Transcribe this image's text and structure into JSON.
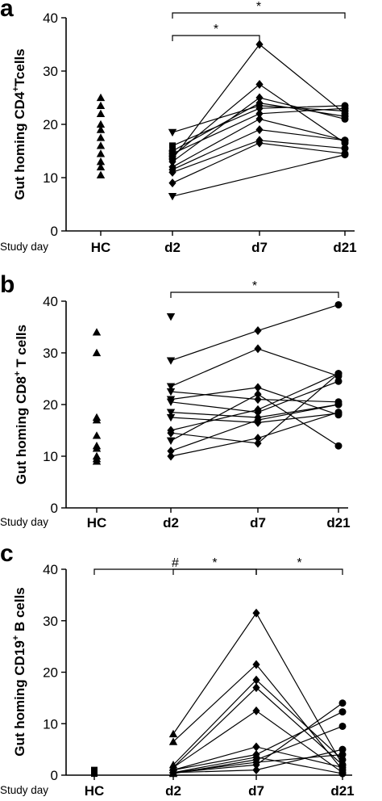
{
  "x_axis_label": "Study day",
  "chart_data": [
    {
      "type": "scatter",
      "panel_label": "a",
      "ylabel_main": "Gut homing CD4",
      "ylabel_sup": "+",
      "ylabel_tail": "Tcells",
      "categories": [
        "HC",
        "d2",
        "d7",
        "d21"
      ],
      "ylim": [
        0,
        40
      ],
      "yticks": [
        0,
        10,
        20,
        30,
        40
      ],
      "grid": false,
      "hc": {
        "marker": "triangle-up",
        "values": [
          25,
          23.5,
          22,
          20,
          19,
          17.5,
          16,
          14.5,
          13,
          12,
          10.5
        ]
      },
      "series": [
        {
          "marker_d2": "triangle-down",
          "values": [
            18.5,
            23.5,
            22.5
          ]
        },
        {
          "marker_d2": "square",
          "values": [
            16,
            23,
            23.5
          ]
        },
        {
          "marker_d2": "circle",
          "values": [
            15,
            24,
            21.5
          ]
        },
        {
          "marker_d2": "circle",
          "values": [
            14.5,
            22,
            23
          ]
        },
        {
          "marker_d2": "circle",
          "values": [
            14,
            27.5,
            16.5
          ]
        },
        {
          "marker_d2": "circle",
          "values": [
            13.5,
            35,
            22
          ]
        },
        {
          "marker_d2": "diamond",
          "values": [
            13,
            25,
            21
          ]
        },
        {
          "marker_d2": "diamond",
          "values": [
            12,
            21,
            17
          ]
        },
        {
          "marker_d2": "diamond",
          "values": [
            11,
            17,
            15.5
          ]
        },
        {
          "marker_d2": "diamond",
          "values": [
            11.5,
            19,
            17
          ]
        },
        {
          "marker_d2": "diamond",
          "values": [
            9,
            16.5,
            14.5
          ]
        },
        {
          "marker_d2": "triangle-down",
          "values": [
            6.5,
            null,
            14.3
          ]
        }
      ],
      "brackets": [
        {
          "from": "d2",
          "to": "d21",
          "level": 1,
          "label": "*"
        },
        {
          "from": "d2",
          "to": "d7",
          "level": 0,
          "label": "*"
        }
      ]
    },
    {
      "type": "scatter",
      "panel_label": "b",
      "ylabel_main": "Gut homing CD8",
      "ylabel_sup": "+",
      "ylabel_tail": " T cells",
      "categories": [
        "HC",
        "d2",
        "d7",
        "d21"
      ],
      "ylim": [
        0,
        40
      ],
      "yticks": [
        0,
        10,
        20,
        30,
        40
      ],
      "grid": false,
      "hc": {
        "marker": "triangle-up",
        "values": [
          34,
          30,
          17.5,
          17,
          14,
          12,
          11.5,
          10,
          9.5,
          9
        ]
      },
      "series": [
        {
          "marker_d2": "triangle-down",
          "values": [
            37,
            null,
            null
          ]
        },
        {
          "marker_d2": "triangle-down",
          "values": [
            28.5,
            34.3,
            39.3
          ]
        },
        {
          "marker_d2": "triangle-down",
          "values": [
            23.5,
            30.8,
            25.5
          ]
        },
        {
          "marker_d2": "triangle-down",
          "values": [
            22.5,
            21,
            20.5
          ]
        },
        {
          "marker_d2": "triangle-down",
          "values": [
            21,
            23.3,
            18
          ]
        },
        {
          "marker_d2": "triangle-down",
          "values": [
            20.5,
            18.5,
            24.5
          ]
        },
        {
          "marker_d2": "triangle-down",
          "values": [
            18.5,
            17.5,
            20
          ]
        },
        {
          "marker_d2": "triangle-down",
          "values": [
            17.5,
            16.5,
            18.3
          ]
        },
        {
          "marker_d2": "diamond",
          "values": [
            15,
            19,
            26
          ]
        },
        {
          "marker_d2": "diamond",
          "values": [
            14.5,
            12.5,
            26
          ]
        },
        {
          "marker_d2": "triangle-down",
          "values": [
            13,
            22,
            12
          ]
        },
        {
          "marker_d2": "diamond",
          "values": [
            11,
            17,
            20
          ]
        },
        {
          "marker_d2": "diamond",
          "values": [
            10,
            13.5,
            18.5
          ]
        }
      ],
      "brackets": [
        {
          "from": "d2",
          "to": "d21",
          "level": 0,
          "label": "*"
        }
      ]
    },
    {
      "type": "scatter",
      "panel_label": "c",
      "ylabel_main": "Gut homing CD19",
      "ylabel_sup": "+",
      "ylabel_tail": " B cells",
      "categories": [
        "HC",
        "d2",
        "d7",
        "d21"
      ],
      "ylim": [
        0,
        40
      ],
      "yticks": [
        0,
        10,
        20,
        30,
        40
      ],
      "grid": false,
      "hc": {
        "marker": "square",
        "values": [
          1,
          0.5,
          0.3
        ]
      },
      "series": [
        {
          "marker_d2": "triangle-up",
          "values": [
            8,
            31.5,
            2
          ]
        },
        {
          "marker_d2": "triangle-up",
          "values": [
            6.5,
            21.5,
            1
          ]
        },
        {
          "marker_d2": "triangle-up",
          "values": [
            2,
            18.5,
            3
          ]
        },
        {
          "marker_d2": "triangle-up",
          "values": [
            1.5,
            17,
            2
          ]
        },
        {
          "marker_d2": "triangle-up",
          "values": [
            1.5,
            12.5,
            0.5
          ]
        },
        {
          "marker_d2": "triangle-up",
          "values": [
            1,
            5.5,
            1.5
          ]
        },
        {
          "marker_d2": "triangle-up",
          "values": [
            1,
            4,
            12.3
          ]
        },
        {
          "marker_d2": "triangle-up",
          "values": [
            0.5,
            2.5,
            4
          ]
        },
        {
          "marker_d2": "triangle-up",
          "values": [
            0.5,
            2,
            14
          ]
        },
        {
          "marker_d2": "triangle-up",
          "values": [
            0.3,
            3,
            9.5
          ]
        },
        {
          "marker_d2": "triangle-up",
          "values": [
            0.5,
            1,
            5
          ]
        },
        {
          "marker_d2": "triangle-up",
          "values": [
            0.5,
            3.5,
            0.3
          ]
        }
      ],
      "brackets": [
        {
          "from": "HC",
          "to": "d7",
          "level": 2,
          "label": "#"
        },
        {
          "from": "d2",
          "to": "d7",
          "level": 1,
          "label": "*"
        },
        {
          "from": "d7",
          "to": "d21",
          "level": 1,
          "label": "*"
        }
      ]
    }
  ]
}
